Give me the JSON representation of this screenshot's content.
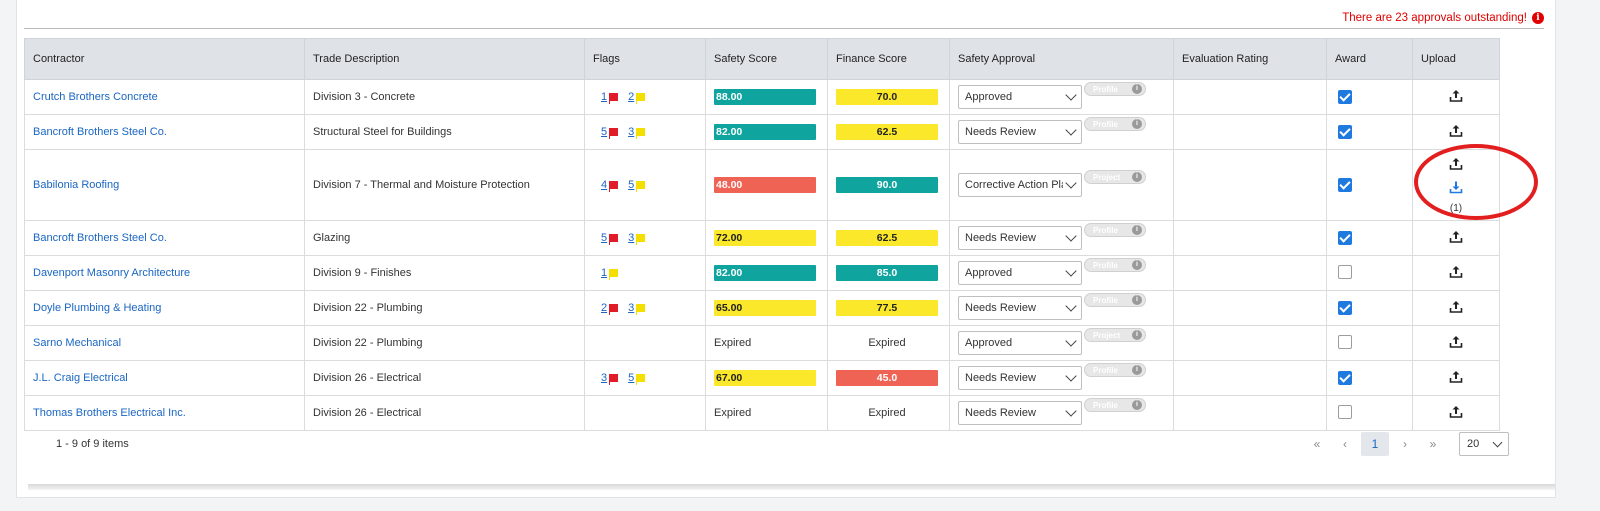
{
  "notice": {
    "text": "There are 23 approvals outstanding!",
    "icon": "alert-info-icon",
    "color": "#e00000"
  },
  "columns": [
    "Contractor",
    "Trade Description",
    "Flags",
    "Safety Score",
    "Finance Score",
    "Safety Approval",
    "Evaluation Rating",
    "Award",
    "Upload"
  ],
  "rows": [
    {
      "contractor": "Crutch Brothers Concrete",
      "trade": "Division 3 - Concrete",
      "red_flags": "1",
      "yellow_flags": "2",
      "safety": "88.00",
      "safety_color": "teal",
      "finance": "70.0",
      "finance_color": "yellow",
      "approval": "Approved",
      "pill": "Profile",
      "award": true
    },
    {
      "contractor": "Bancroft Brothers Steel Co.",
      "trade": "Structural Steel for Buildings",
      "red_flags": "5",
      "yellow_flags": "3",
      "safety": "82.00",
      "safety_color": "teal",
      "finance": "62.5",
      "finance_color": "yellow",
      "approval": "Needs Review",
      "pill": "Profile",
      "award": true
    },
    {
      "contractor": "Babilonia Roofing",
      "trade": "Division 7 - Thermal and Moisture Protection",
      "red_flags": "4",
      "yellow_flags": "5",
      "safety": "48.00",
      "safety_color": "red",
      "finance": "90.0",
      "finance_color": "teal",
      "approval": "Corrective Action Pla",
      "pill": "Project",
      "award": true,
      "download_count": "(1)"
    },
    {
      "contractor": "Bancroft Brothers Steel Co.",
      "trade": "Glazing",
      "red_flags": "5",
      "yellow_flags": "3",
      "safety": "72.00",
      "safety_color": "yellow",
      "finance": "62.5",
      "finance_color": "yellow",
      "approval": "Needs Review",
      "pill": "Profile",
      "award": true
    },
    {
      "contractor": "Davenport Masonry Architecture",
      "trade": "Division 9 - Finishes",
      "red_flags": "",
      "yellow_flags": "1",
      "safety": "82.00",
      "safety_color": "teal",
      "finance": "85.0",
      "finance_color": "teal",
      "approval": "Approved",
      "pill": "Profile",
      "award": false
    },
    {
      "contractor": "Doyle Plumbing & Heating",
      "trade": "Division 22 - Plumbing",
      "red_flags": "2",
      "yellow_flags": "3",
      "safety": "65.00",
      "safety_color": "yellow",
      "finance": "77.5",
      "finance_color": "yellow",
      "approval": "Needs Review",
      "pill": "Profile",
      "award": true
    },
    {
      "contractor": "Sarno Mechanical",
      "trade": "Division 22 - Plumbing",
      "red_flags": "",
      "yellow_flags": "",
      "safety": "Expired",
      "safety_color": "",
      "finance": "Expired",
      "finance_color": "",
      "approval": "Approved",
      "pill": "Project",
      "award": false
    },
    {
      "contractor": "J.L. Craig Electrical",
      "trade": "Division 26 - Electrical",
      "red_flags": "3",
      "yellow_flags": "5",
      "safety": "67.00",
      "safety_color": "yellow",
      "finance": "45.0",
      "finance_color": "red",
      "approval": "Needs Review",
      "pill": "Profile",
      "award": true
    },
    {
      "contractor": "Thomas Brothers Electrical Inc.",
      "trade": "Division 26 - Electrical",
      "red_flags": "",
      "yellow_flags": "",
      "safety": "Expired",
      "safety_color": "",
      "finance": "Expired",
      "finance_color": "",
      "approval": "Needs Review",
      "pill": "Profile",
      "award": false
    }
  ],
  "pagination": {
    "summary": "1 - 9 of 9 items",
    "first": "«",
    "prev": "‹",
    "current": "1",
    "next": "›",
    "last": "»",
    "page_size": "20"
  },
  "colors": {
    "teal": "#10a49f",
    "yellow": "#fbe82b",
    "red": "#ef6354",
    "link": "#1a66c2",
    "highlight_circle": "#e31e1e"
  },
  "icons": {
    "upload": "upload-icon",
    "download": "download-icon",
    "red_flag": "red-flag-icon",
    "yellow_flag": "yellow-flag-icon",
    "info": "info-icon",
    "chevron": "chevron-down-icon"
  }
}
